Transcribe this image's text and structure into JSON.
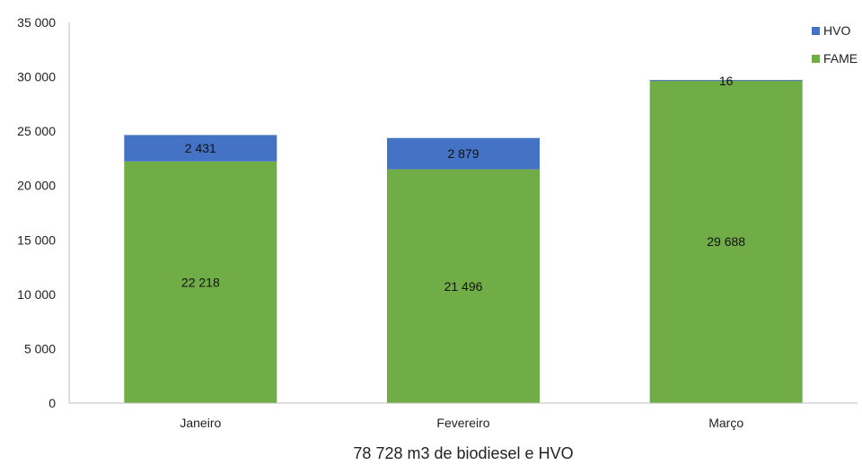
{
  "chart_data": {
    "type": "bar",
    "stacked": true,
    "categories": [
      "Janeiro",
      "Fevereiro",
      "Março"
    ],
    "series": [
      {
        "name": "FAME",
        "color": "#70ad47",
        "values": [
          22218,
          21496,
          29688
        ],
        "labels": [
          "22 218",
          "21 496",
          "29 688"
        ]
      },
      {
        "name": "HVO",
        "color": "#4472c4",
        "values": [
          2431,
          2879,
          16
        ],
        "labels": [
          "2 431",
          "2 879",
          "16"
        ]
      }
    ],
    "title": "78 728 m3 de biodiesel e HVO",
    "xlabel": "",
    "ylabel": "",
    "ylim": [
      0,
      35000
    ],
    "yticks": [
      {
        "value": 0,
        "label": "0"
      },
      {
        "value": 5000,
        "label": "5 000"
      },
      {
        "value": 10000,
        "label": "10 000"
      },
      {
        "value": 15000,
        "label": "15 000"
      },
      {
        "value": 20000,
        "label": "20 000"
      },
      {
        "value": 25000,
        "label": "25 000"
      },
      {
        "value": 30000,
        "label": "30 000"
      },
      {
        "value": 35000,
        "label": "35 000"
      }
    ],
    "grid": false,
    "legend": {
      "position": "top-right",
      "entries": [
        "HVO",
        "FAME"
      ]
    }
  }
}
